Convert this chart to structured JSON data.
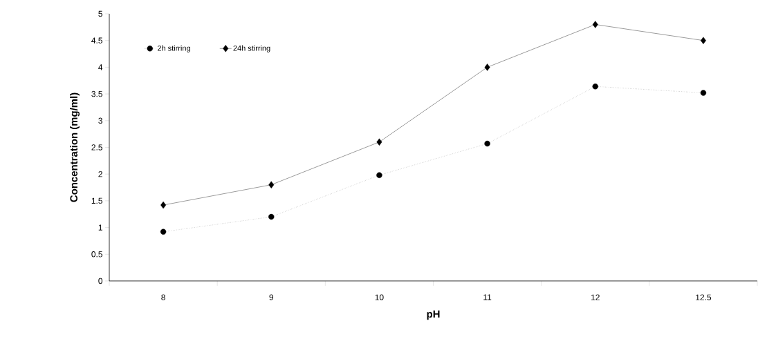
{
  "chart_data": {
    "type": "line",
    "xlabel": "pH",
    "ylabel": "Concentration (mg/ml)",
    "categories": [
      "8",
      "9",
      "10",
      "11",
      "12",
      "12.5"
    ],
    "series": [
      {
        "name": "2h stirring",
        "color": "#000000",
        "values": [
          0.92,
          1.2,
          1.98,
          2.57,
          3.64,
          3.52
        ],
        "marker": "circle",
        "line_style": "dotted"
      },
      {
        "name": "24h stirring",
        "color": "#000000",
        "values": [
          1.42,
          1.8,
          2.6,
          4.0,
          4.8,
          4.5
        ],
        "marker": "diamond",
        "line_style": "solid"
      }
    ],
    "ylim": [
      0,
      5
    ],
    "yticks": [
      0,
      0.5,
      1,
      1.5,
      2,
      2.5,
      3,
      3.5,
      4,
      4.5,
      5
    ],
    "grid": false,
    "legend": "top left"
  }
}
